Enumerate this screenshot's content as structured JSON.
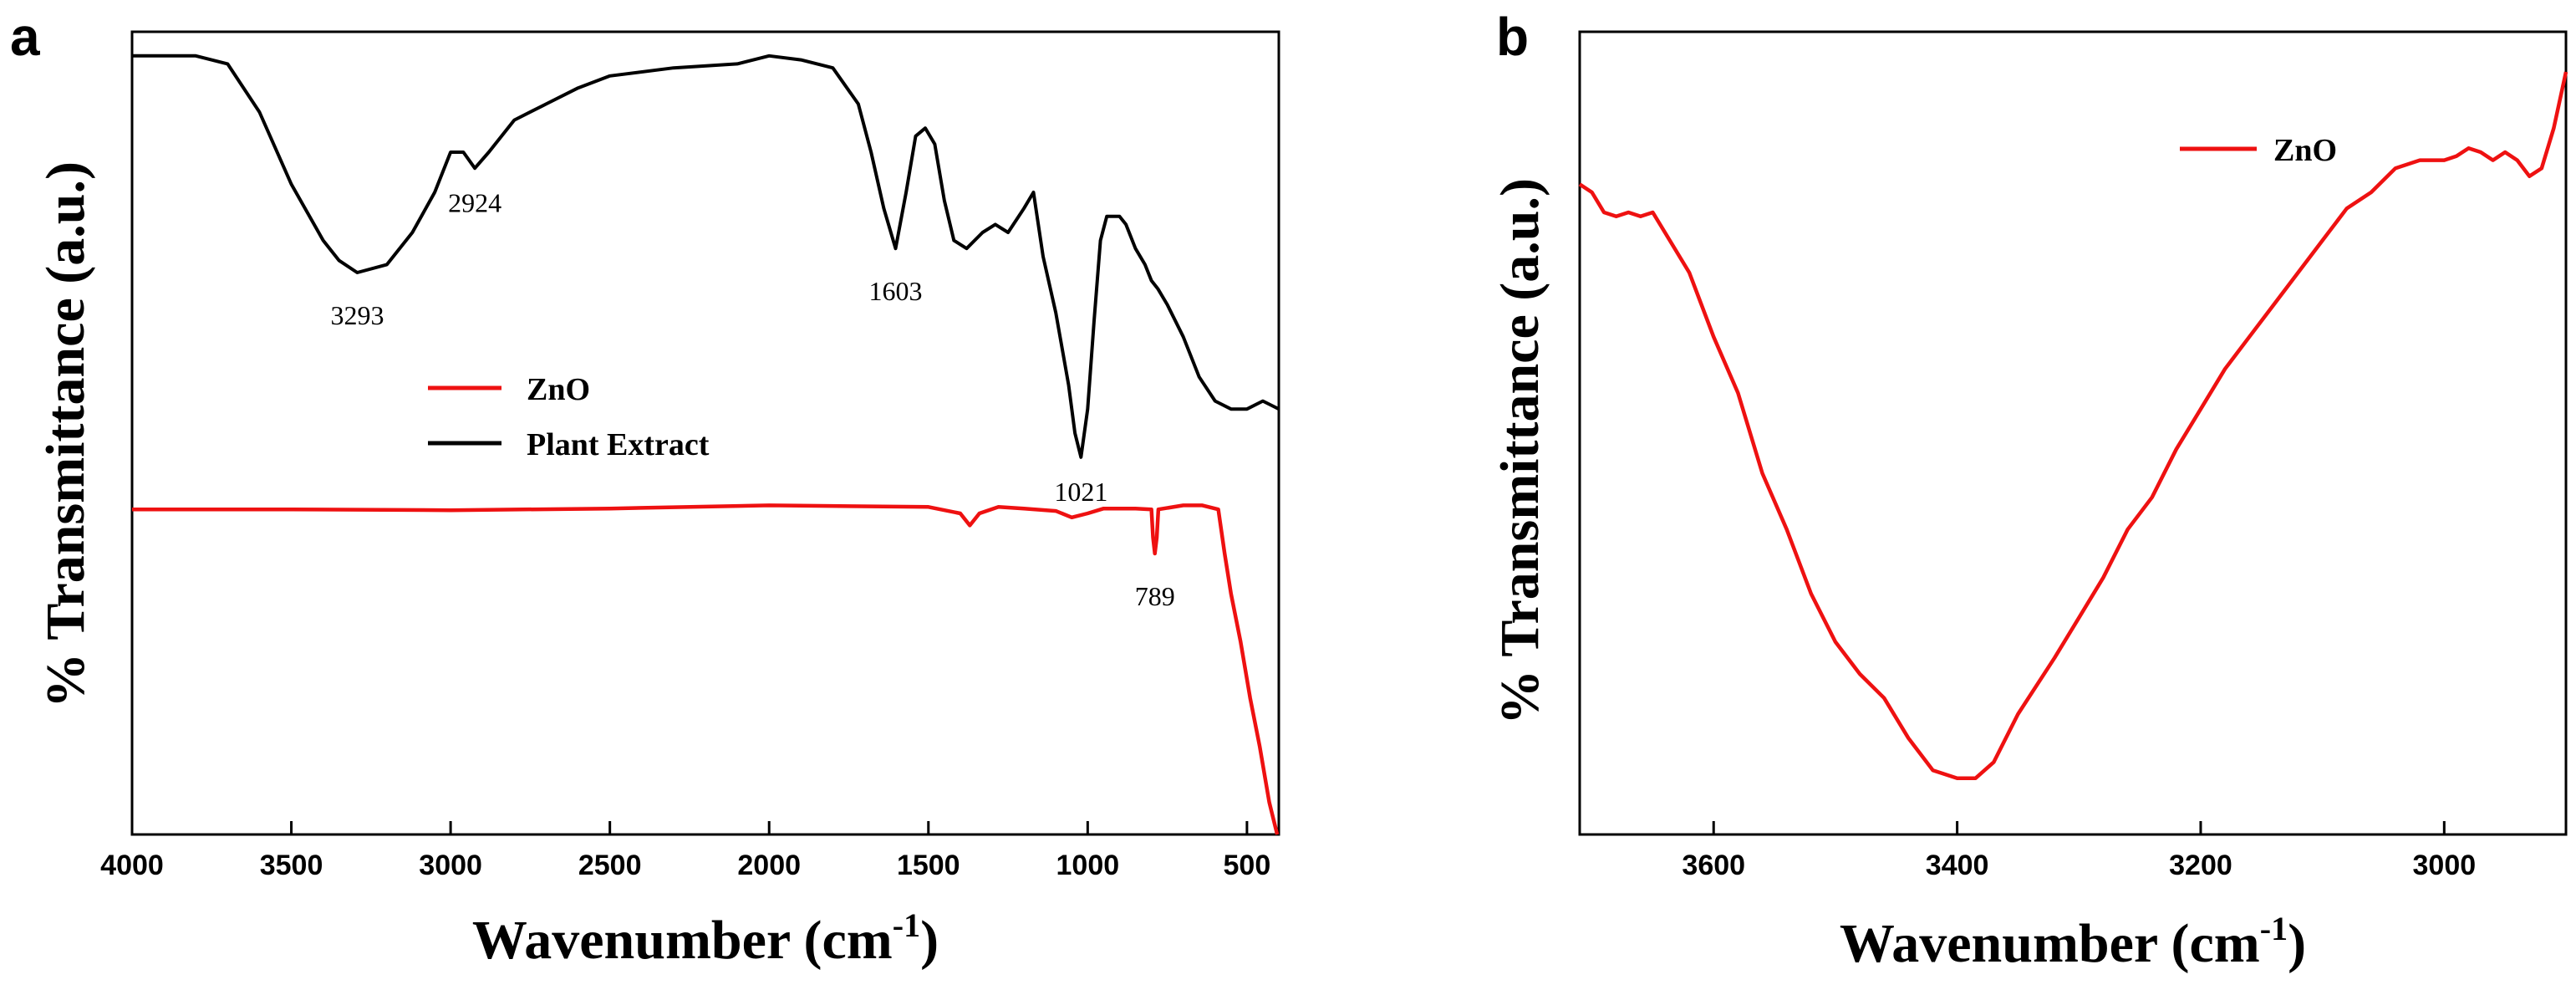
{
  "chart_data": [
    {
      "panel": "a",
      "type": "line",
      "xlabel": "Wavenumber (cm",
      "xlabel_sup": "-1",
      "xlabel_close": ")",
      "ylabel": "% Transmittance (a.u.)",
      "xlim": [
        4000,
        400
      ],
      "ylim": [
        0,
        100
      ],
      "xticks": [
        4000,
        3500,
        3000,
        2500,
        2000,
        1500,
        1000,
        500
      ],
      "xtick_labels": [
        "4000",
        "3500",
        "3000",
        "2500",
        "2000",
        "1500",
        "1000",
        "500"
      ],
      "legend": {
        "position": "middle-left",
        "entries": [
          "ZnO",
          "Plant Extract"
        ]
      },
      "series": [
        {
          "name": "Plant Extract",
          "color": "#000000",
          "points": [
            [
              4000,
              97
            ],
            [
              3800,
              97
            ],
            [
              3700,
              96
            ],
            [
              3600,
              90
            ],
            [
              3500,
              81
            ],
            [
              3400,
              74
            ],
            [
              3350,
              71.5
            ],
            [
              3293,
              70
            ],
            [
              3200,
              71
            ],
            [
              3120,
              75
            ],
            [
              3050,
              80
            ],
            [
              3000,
              85
            ],
            [
              2960,
              85
            ],
            [
              2924,
              83
            ],
            [
              2880,
              85
            ],
            [
              2800,
              89
            ],
            [
              2700,
              91
            ],
            [
              2600,
              93
            ],
            [
              2500,
              94.5
            ],
            [
              2300,
              95.5
            ],
            [
              2100,
              96
            ],
            [
              2000,
              97
            ],
            [
              1900,
              96.5
            ],
            [
              1800,
              95.5
            ],
            [
              1720,
              91
            ],
            [
              1680,
              85
            ],
            [
              1640,
              78
            ],
            [
              1603,
              73
            ],
            [
              1570,
              80
            ],
            [
              1540,
              87
            ],
            [
              1510,
              88
            ],
            [
              1480,
              86
            ],
            [
              1450,
              79
            ],
            [
              1420,
              74
            ],
            [
              1380,
              73
            ],
            [
              1330,
              75
            ],
            [
              1290,
              76
            ],
            [
              1250,
              75
            ],
            [
              1200,
              78
            ],
            [
              1170,
              80
            ],
            [
              1140,
              72
            ],
            [
              1100,
              65
            ],
            [
              1060,
              56
            ],
            [
              1040,
              50
            ],
            [
              1021,
              47
            ],
            [
              1000,
              53
            ],
            [
              980,
              64
            ],
            [
              960,
              74
            ],
            [
              940,
              77
            ],
            [
              900,
              77
            ],
            [
              880,
              76
            ],
            [
              850,
              73
            ],
            [
              820,
              71
            ],
            [
              800,
              69
            ],
            [
              780,
              68
            ],
            [
              750,
              66
            ],
            [
              700,
              62
            ],
            [
              650,
              57
            ],
            [
              600,
              54
            ],
            [
              550,
              53
            ],
            [
              500,
              53
            ],
            [
              450,
              54
            ],
            [
              400,
              53
            ]
          ]
        },
        {
          "name": "ZnO",
          "color": "#ee1111",
          "points": [
            [
              4000,
              40.5
            ],
            [
              3500,
              40.5
            ],
            [
              3000,
              40.4
            ],
            [
              2500,
              40.6
            ],
            [
              2000,
              41
            ],
            [
              1500,
              40.8
            ],
            [
              1400,
              40
            ],
            [
              1370,
              38.5
            ],
            [
              1340,
              40
            ],
            [
              1280,
              40.8
            ],
            [
              1200,
              40.6
            ],
            [
              1100,
              40.3
            ],
            [
              1050,
              39.5
            ],
            [
              1000,
              40
            ],
            [
              950,
              40.6
            ],
            [
              850,
              40.6
            ],
            [
              800,
              40.5
            ],
            [
              795,
              37
            ],
            [
              789,
              35
            ],
            [
              783,
              37
            ],
            [
              778,
              40.5
            ],
            [
              700,
              41
            ],
            [
              640,
              41
            ],
            [
              590,
              40.5
            ],
            [
              570,
              35
            ],
            [
              550,
              30
            ],
            [
              520,
              24
            ],
            [
              490,
              17
            ],
            [
              460,
              11
            ],
            [
              430,
              4
            ],
            [
              405,
              0
            ]
          ]
        }
      ],
      "annotations": [
        {
          "text": "3293",
          "x": 3293,
          "y": 65
        },
        {
          "text": "2924",
          "x": 2924,
          "y": 79
        },
        {
          "text": "1603",
          "x": 1603,
          "y": 68
        },
        {
          "text": "1021",
          "x": 1021,
          "y": 43
        },
        {
          "text": "789",
          "x": 789,
          "y": 30
        }
      ]
    },
    {
      "panel": "b",
      "type": "line",
      "xlabel": "Wavenumber (cm",
      "xlabel_sup": "-1",
      "xlabel_close": ")",
      "ylabel": "% Transmittance (a.u.)",
      "xlim": [
        3710,
        2900
      ],
      "ylim": [
        0,
        100
      ],
      "xticks": [
        3600,
        3400,
        3200,
        3000
      ],
      "xtick_labels": [
        "3600",
        "3400",
        "3200",
        "3000"
      ],
      "legend": {
        "position": "top-right",
        "entries": [
          "ZnO"
        ]
      },
      "series": [
        {
          "name": "ZnO",
          "color": "#ee1111",
          "points": [
            [
              3710,
              81
            ],
            [
              3700,
              80
            ],
            [
              3690,
              77.5
            ],
            [
              3680,
              77
            ],
            [
              3670,
              77.5
            ],
            [
              3660,
              77
            ],
            [
              3650,
              77.5
            ],
            [
              3640,
              75
            ],
            [
              3620,
              70
            ],
            [
              3600,
              62
            ],
            [
              3580,
              55
            ],
            [
              3560,
              45
            ],
            [
              3540,
              38
            ],
            [
              3520,
              30
            ],
            [
              3500,
              24
            ],
            [
              3480,
              20
            ],
            [
              3460,
              17
            ],
            [
              3440,
              12
            ],
            [
              3420,
              8
            ],
            [
              3400,
              7
            ],
            [
              3385,
              7
            ],
            [
              3370,
              9
            ],
            [
              3350,
              15
            ],
            [
              3320,
              22
            ],
            [
              3300,
              27
            ],
            [
              3280,
              32
            ],
            [
              3260,
              38
            ],
            [
              3240,
              42
            ],
            [
              3220,
              48
            ],
            [
              3200,
              53
            ],
            [
              3180,
              58
            ],
            [
              3160,
              62
            ],
            [
              3140,
              66
            ],
            [
              3120,
              70
            ],
            [
              3100,
              74
            ],
            [
              3080,
              78
            ],
            [
              3060,
              80
            ],
            [
              3040,
              83
            ],
            [
              3020,
              84
            ],
            [
              3000,
              84
            ],
            [
              2990,
              84.5
            ],
            [
              2980,
              85.5
            ],
            [
              2970,
              85
            ],
            [
              2960,
              84
            ],
            [
              2950,
              85
            ],
            [
              2940,
              84
            ],
            [
              2930,
              82
            ],
            [
              2920,
              83
            ],
            [
              2910,
              88
            ],
            [
              2900,
              95
            ]
          ]
        }
      ]
    }
  ]
}
